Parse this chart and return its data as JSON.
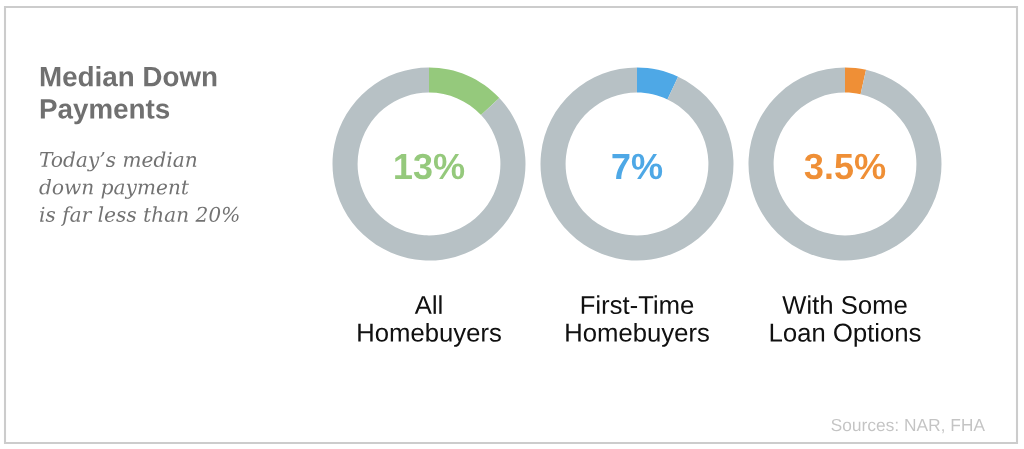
{
  "chart_data": [
    {
      "type": "other",
      "title": "Median Down\nPayments",
      "subtitle": "Today’s median\ndown payment\nis far less than 20%",
      "annotations": [
        "Sources: NAR, FHA"
      ]
    },
    {
      "type": "donut",
      "title": "All\nHomebuyers",
      "categories": [
        null,
        null
      ],
      "values": [
        13,
        87
      ],
      "colors": [
        "#95c97c",
        "#b7c1c5"
      ],
      "annotations": [
        "13%"
      ]
    },
    {
      "type": "donut",
      "title": "First-Time\nHomebuyers",
      "categories": [
        null,
        null
      ],
      "values": [
        7,
        93
      ],
      "colors": [
        "#4ea8e6",
        "#b7c1c5"
      ],
      "annotations": [
        "7%"
      ]
    },
    {
      "type": "donut",
      "title": "With Some\nLoan Options",
      "categories": [
        null,
        null
      ],
      "values": [
        3.5,
        96.5
      ],
      "colors": [
        "#ef8f36",
        "#b7c1c5"
      ],
      "annotations": [
        "3.5%"
      ]
    }
  ]
}
